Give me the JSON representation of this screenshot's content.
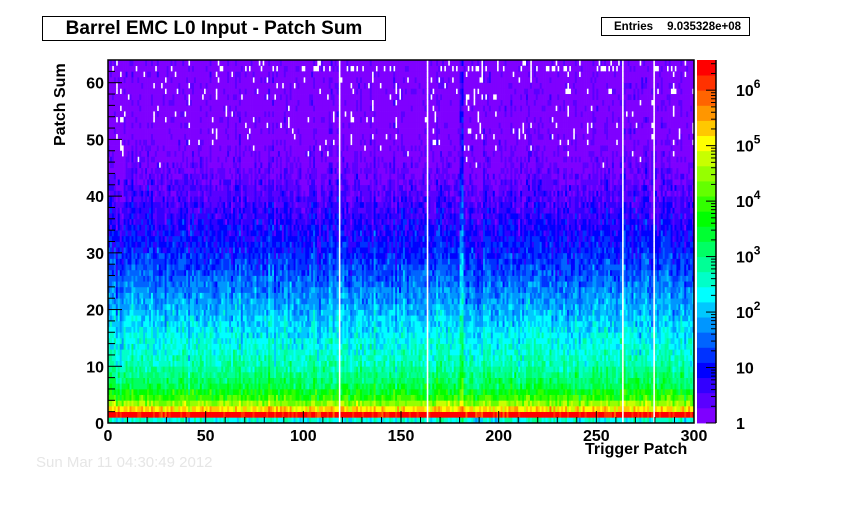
{
  "chart_data": {
    "type": "heatmap",
    "title": "Barrel EMC L0 Input - Patch Sum",
    "xlabel": "Trigger Patch",
    "ylabel": "Patch Sum",
    "xlim": [
      0,
      300
    ],
    "ylim": [
      0,
      64
    ],
    "xticks": [
      0,
      50,
      100,
      150,
      200,
      250,
      300
    ],
    "yticks": [
      0,
      10,
      20,
      30,
      40,
      50,
      60
    ],
    "stats": {
      "label": "Entries",
      "value": "9.035328e+08"
    },
    "color_scale": "log",
    "zlim": [
      1,
      3500000
    ],
    "zticks": [
      {
        "value": 1,
        "label": "1"
      },
      {
        "value": 10,
        "label": "10"
      },
      {
        "value": 100,
        "label": "10^2"
      },
      {
        "value": 1000,
        "label": "10^3"
      },
      {
        "value": 10000,
        "label": "10^4"
      },
      {
        "value": 100000,
        "label": "10^5"
      },
      {
        "value": 1000000,
        "label": "10^6"
      }
    ],
    "palette": [
      "#7f00ff",
      "#5a00ff",
      "#3200ff",
      "#0000ff",
      "#0032ff",
      "#0064ff",
      "#0096ff",
      "#00c8ff",
      "#00ffff",
      "#00ffc8",
      "#00ff96",
      "#00ff64",
      "#00ff32",
      "#00ff00",
      "#32ff00",
      "#64ff00",
      "#96ff00",
      "#c8ff00",
      "#ffff00",
      "#ffc800",
      "#ff9600",
      "#ff6400",
      "#ff3200",
      "#ff0000"
    ],
    "approx_counts_by_patch_sum": [
      {
        "y": 0,
        "count": 300
      },
      {
        "y": 1,
        "count": 2500000
      },
      {
        "y": 2,
        "count": 150000
      },
      {
        "y": 3,
        "count": 30000
      },
      {
        "y": 4,
        "count": 8000
      },
      {
        "y": 6,
        "count": 2000
      },
      {
        "y": 10,
        "count": 500
      },
      {
        "y": 15,
        "count": 200
      },
      {
        "y": 20,
        "count": 80
      },
      {
        "y": 25,
        "count": 30
      },
      {
        "y": 30,
        "count": 12
      },
      {
        "y": 35,
        "count": 6
      },
      {
        "y": 40,
        "count": 3
      },
      {
        "y": 45,
        "count": 1.5
      },
      {
        "y": 50,
        "count": 1
      },
      {
        "y": 63,
        "count": 1
      }
    ],
    "empty_patches": [
      118,
      163,
      263,
      279
    ],
    "hot_patches": [
      180,
      181
    ]
  },
  "footer": "Sun Mar 11 04:30:49 2012"
}
